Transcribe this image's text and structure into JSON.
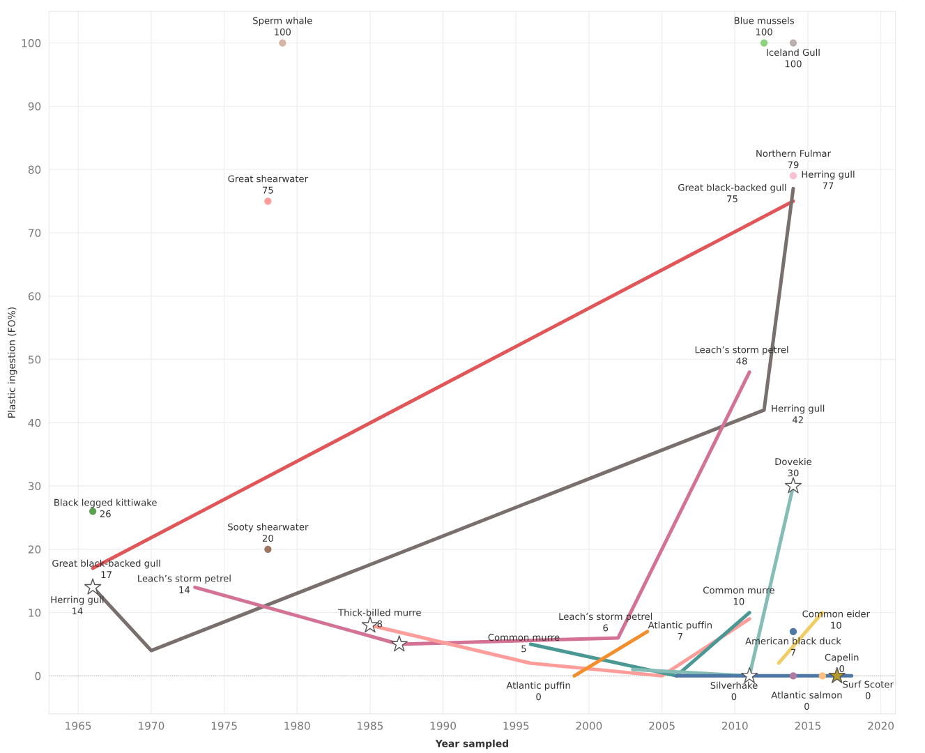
{
  "chart_data": {
    "type": "line",
    "xlabel": "Year sampled",
    "ylabel": "Plastic ingestion (FO%)",
    "xlim": [
      1963,
      2021
    ],
    "ylim": [
      -6,
      105
    ],
    "xticks": [
      1965,
      1970,
      1975,
      1980,
      1985,
      1990,
      1995,
      2000,
      2005,
      2010,
      2015,
      2020
    ],
    "yticks": [
      0,
      10,
      20,
      30,
      40,
      50,
      60,
      70,
      80,
      90,
      100
    ],
    "grid": true,
    "legend": false,
    "ref_lines": [
      {
        "axis": "y",
        "value": 0,
        "color": "#b0b0b0",
        "line_style": "dotted"
      }
    ],
    "series": [
      {
        "color": "#e15759",
        "x": [
          1966,
          2014
        ],
        "values": [
          17,
          75
        ]
      },
      {
        "color": "#79706e",
        "x": [
          1966,
          1970,
          2012,
          2014
        ],
        "values": [
          14,
          4,
          42,
          77
        ]
      },
      {
        "color": "#d37295",
        "x": [
          1973,
          1987,
          2002,
          2011
        ],
        "values": [
          14,
          5,
          6,
          48
        ]
      },
      {
        "color": "#ff9d9a",
        "x": [
          1985,
          1996,
          2005,
          2011
        ],
        "values": [
          8,
          2,
          0,
          9
        ]
      },
      {
        "color": "#499894",
        "x": [
          1996,
          2006,
          2011
        ],
        "values": [
          5,
          0,
          10
        ]
      },
      {
        "color": "#f28e2b",
        "x": [
          1999,
          2004
        ],
        "values": [
          0,
          7
        ]
      },
      {
        "color": "#86bcb6",
        "x": [
          2003,
          2011,
          2014
        ],
        "values": [
          1,
          0,
          30
        ]
      },
      {
        "color": "#4e79a7",
        "x": [
          2006,
          2018
        ],
        "values": [
          0,
          0
        ]
      },
      {
        "color": "#f1ce63",
        "x": [
          2013,
          2016
        ],
        "values": [
          2,
          10
        ]
      },
      {
        "type": "scatter",
        "color": "#d7b5a6",
        "x": [
          1979
        ],
        "values": [
          100
        ]
      },
      {
        "type": "scatter",
        "color": "#8cd17d",
        "x": [
          2012
        ],
        "values": [
          100
        ]
      },
      {
        "type": "scatter",
        "color": "#bab0ac",
        "x": [
          2014
        ],
        "values": [
          100
        ]
      },
      {
        "type": "scatter",
        "color": "#ff9d9a",
        "x": [
          1978
        ],
        "values": [
          75
        ]
      },
      {
        "type": "scatter",
        "color": "#fabfd2",
        "x": [
          2014
        ],
        "values": [
          79
        ]
      },
      {
        "type": "scatter",
        "color": "#59a14f",
        "x": [
          1966
        ],
        "values": [
          26
        ]
      },
      {
        "type": "scatter",
        "color": "#9d7660",
        "x": [
          1978
        ],
        "values": [
          20
        ]
      },
      {
        "type": "scatter",
        "color": "#4e79a7",
        "x": [
          2014
        ],
        "values": [
          7
        ]
      },
      {
        "type": "scatter",
        "color": "#b07aa1",
        "x": [
          2014
        ],
        "values": [
          0
        ]
      },
      {
        "type": "scatter",
        "color": "#ffbe7d",
        "x": [
          2016
        ],
        "values": [
          0
        ]
      },
      {
        "type": "scatter",
        "colors": [
          "#ffffff",
          "#ffffff",
          "#ffffff",
          "#ffffff",
          "#ffffff",
          "#b6992d"
        ],
        "marker": "star",
        "x": [
          1966,
          1985,
          1987,
          2011,
          2014,
          2017
        ],
        "values": [
          14,
          8,
          5,
          0,
          30,
          0
        ]
      }
    ],
    "annotations": [
      {
        "text": "Sperm whale\n100",
        "x": 1979,
        "y": 100
      },
      {
        "text": "Blue mussels\n100",
        "x": 2012,
        "y": 100
      },
      {
        "text": "Iceland Gull\n100",
        "x": 2014,
        "y": 100
      },
      {
        "text": "Northern Fulmar\n79",
        "x": 2014,
        "y": 79
      },
      {
        "text": "Herring gull\n77",
        "x": 2014,
        "y": 77
      },
      {
        "text": "Great black-backed gull\n75",
        "x": 2014,
        "y": 75
      },
      {
        "text": "Great shearwater\n75",
        "x": 1978,
        "y": 75
      },
      {
        "text": "Leach’s storm petrel\n48",
        "x": 2011,
        "y": 48
      },
      {
        "text": "Herring gull\n42",
        "x": 2012,
        "y": 42
      },
      {
        "text": "Dovekie\n30",
        "x": 2014,
        "y": 30
      },
      {
        "text": "Black legged kittiwake\n26",
        "x": 1966,
        "y": 26
      },
      {
        "text": "Sooty shearwater\n20",
        "x": 1978,
        "y": 20
      },
      {
        "text": "Great black-backed gull\n17",
        "x": 1966,
        "y": 17
      },
      {
        "text": "Herring gull\n14",
        "x": 1966,
        "y": 14
      },
      {
        "text": "Leach’s storm petrel\n14",
        "x": 1973,
        "y": 14
      },
      {
        "text": "Thick-billed murre\n8",
        "x": 1985,
        "y": 8
      },
      {
        "text": "Leach’s storm petrel\n6",
        "x": 2002,
        "y": 6
      },
      {
        "text": "Common murre\n5",
        "x": 1996,
        "y": 5
      },
      {
        "text": "Atlantic puffin\n7",
        "x": 2004,
        "y": 7
      },
      {
        "text": "Atlantic puffin\n0",
        "x": 1999,
        "y": 0
      },
      {
        "text": "Common murre\n10",
        "x": 2011,
        "y": 10
      },
      {
        "text": "Common eider\n10",
        "x": 2016,
        "y": 10
      },
      {
        "text": "American black duck\n7",
        "x": 2014,
        "y": 7
      },
      {
        "text": "Capelin\n0",
        "x": 2017,
        "y": 0
      },
      {
        "text": "Silverhake\n0",
        "x": 2011,
        "y": 0
      },
      {
        "text": "Atlantic salmon\n0",
        "x": 2014,
        "y": 0
      },
      {
        "text": "Surf Scoter\n0",
        "x": 2017,
        "y": 0
      }
    ]
  }
}
